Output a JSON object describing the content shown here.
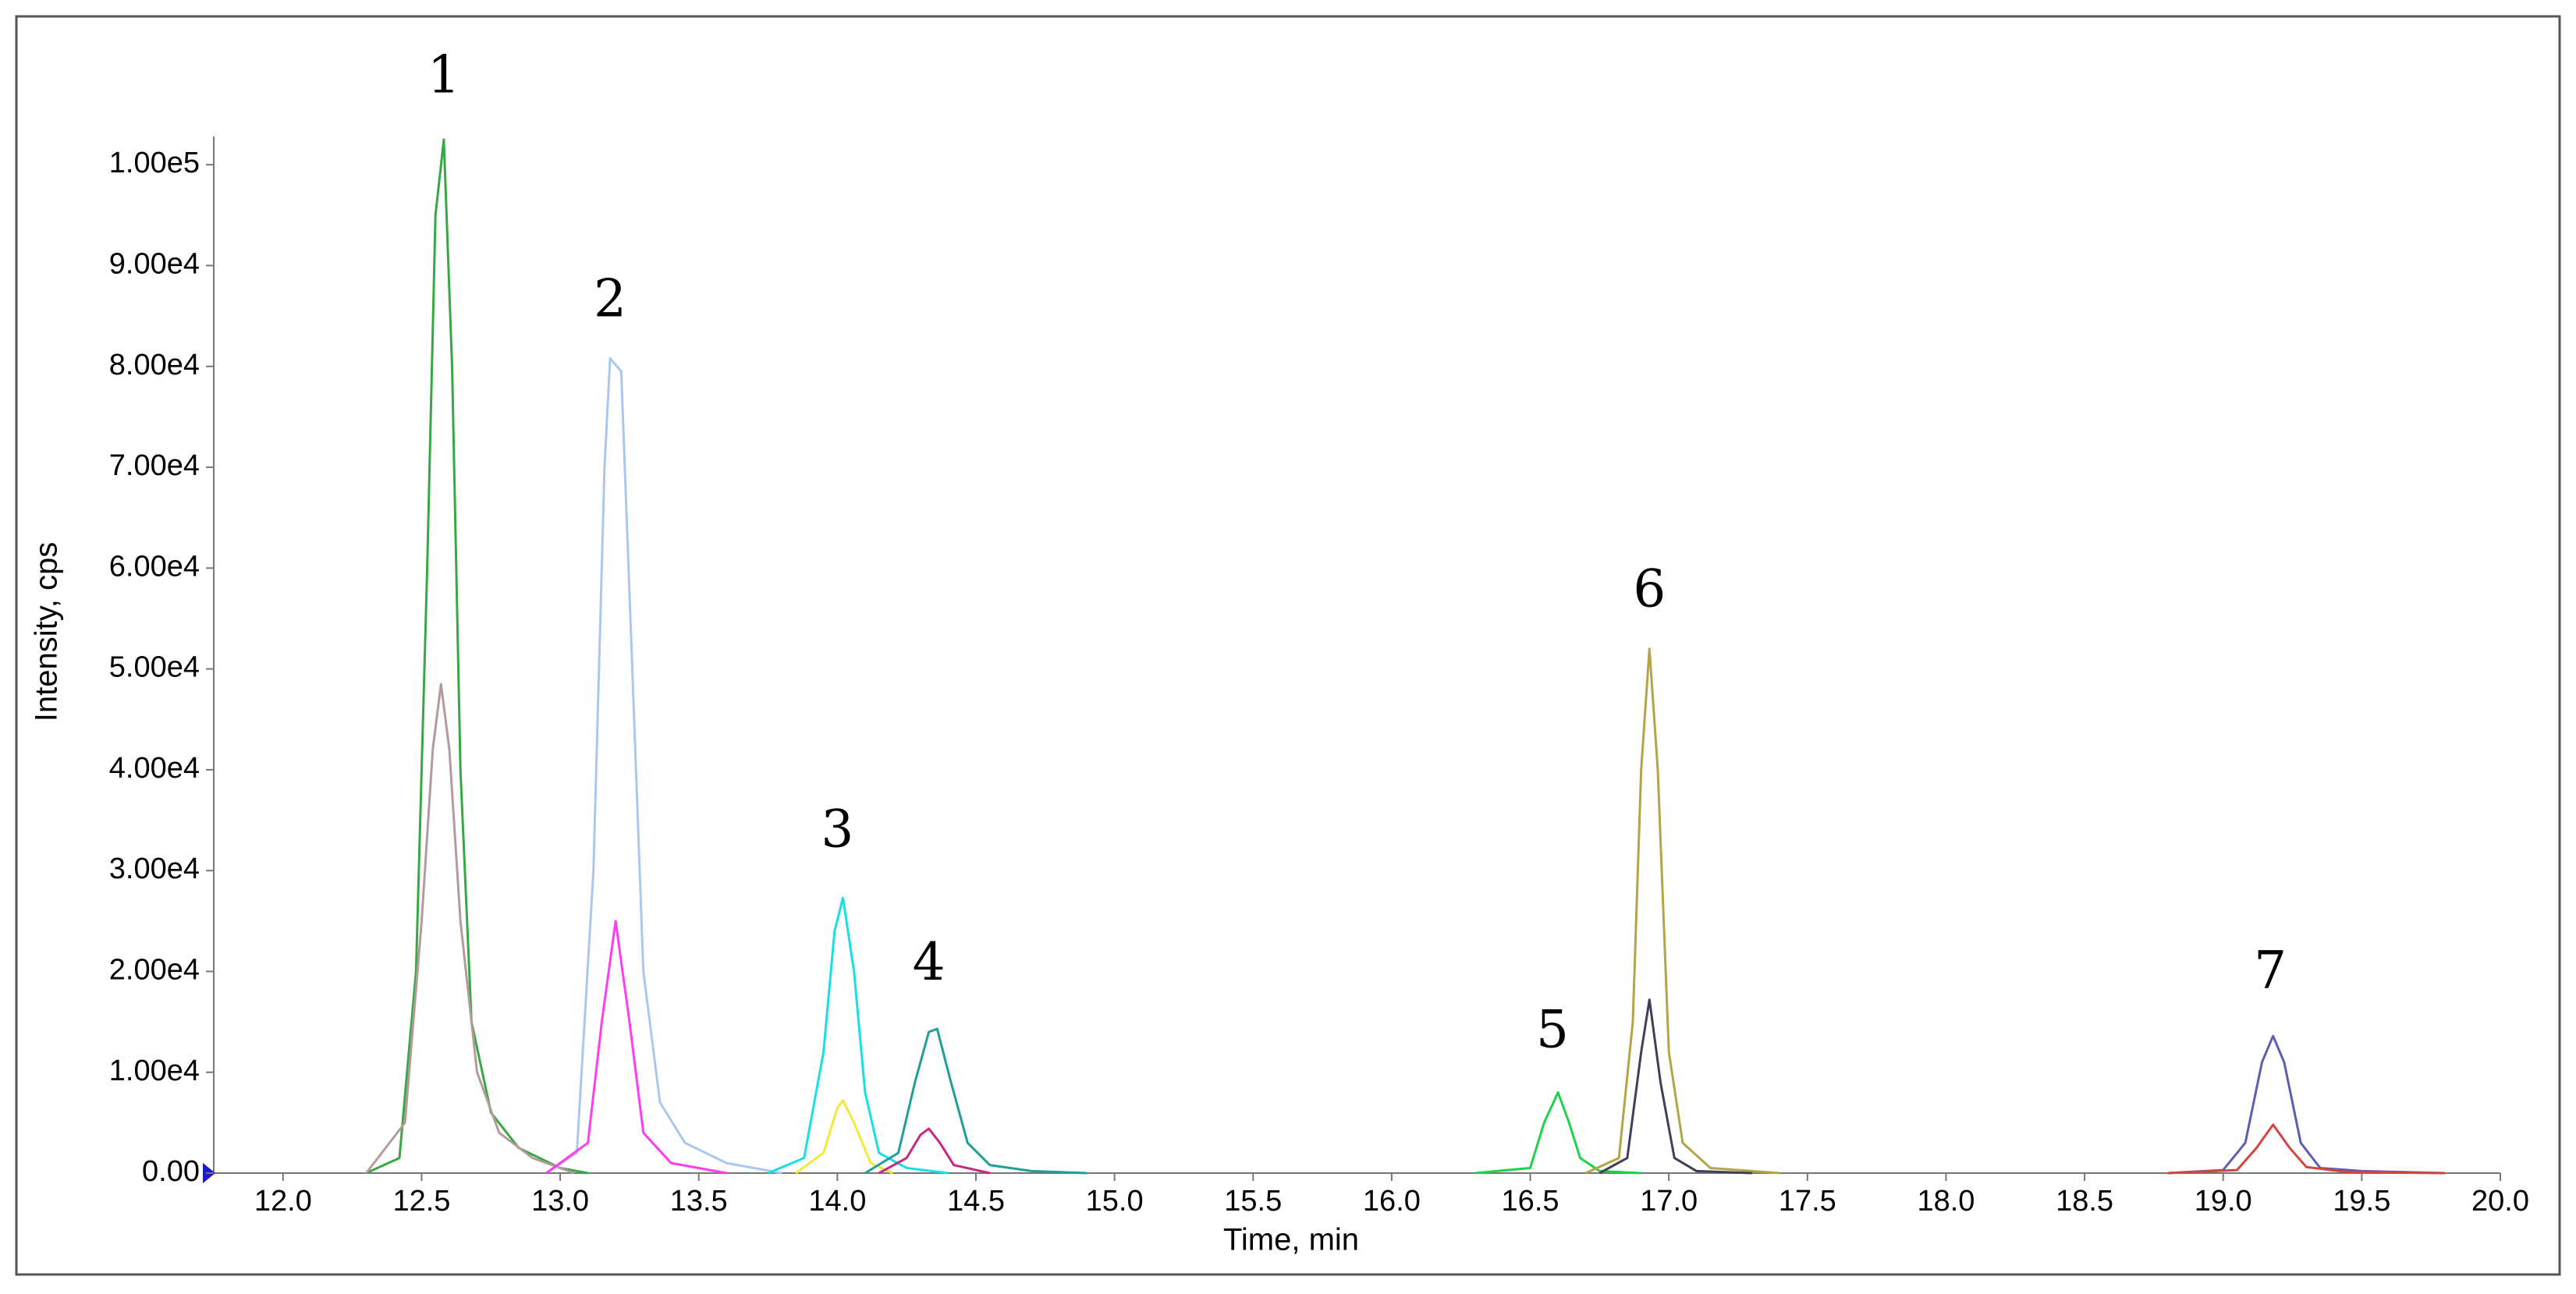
{
  "chart_data": {
    "type": "line",
    "x_label": "Time, min",
    "y_label": "Intensity, cps",
    "xlim": [
      11.75,
      20.0
    ],
    "ylim": [
      0,
      102800
    ],
    "xticks": [
      {
        "value": 12,
        "label": "12.0"
      },
      {
        "value": 12.5,
        "label": "12.5"
      },
      {
        "value": 13,
        "label": "13.0"
      },
      {
        "value": 13.5,
        "label": "13.5"
      },
      {
        "value": 14,
        "label": "14.0"
      },
      {
        "value": 14.5,
        "label": "14.5"
      },
      {
        "value": 15,
        "label": "15.0"
      },
      {
        "value": 15.5,
        "label": "15.5"
      },
      {
        "value": 16,
        "label": "16.0"
      },
      {
        "value": 16.5,
        "label": "16.5"
      },
      {
        "value": 17,
        "label": "17.0"
      },
      {
        "value": 17.5,
        "label": "17.5"
      },
      {
        "value": 18,
        "label": "18.0"
      },
      {
        "value": 18.5,
        "label": "18.5"
      },
      {
        "value": 19,
        "label": "19.0"
      },
      {
        "value": 19.5,
        "label": "19.5"
      },
      {
        "value": 20,
        "label": "20.0"
      }
    ],
    "yticks": [
      {
        "value": 0,
        "label": "0.00"
      },
      {
        "value": 10000,
        "label": "1.00e4"
      },
      {
        "value": 20000,
        "label": "2.00e4"
      },
      {
        "value": 30000,
        "label": "3.00e4"
      },
      {
        "value": 40000,
        "label": "4.00e4"
      },
      {
        "value": 50000,
        "label": "5.00e4"
      },
      {
        "value": 60000,
        "label": "6.00e4"
      },
      {
        "value": 70000,
        "label": "7.00e4"
      },
      {
        "value": 80000,
        "label": "8.00e4"
      },
      {
        "value": 90000,
        "label": "9.00e4"
      },
      {
        "value": 100000,
        "label": "1.00e5"
      }
    ],
    "series": [
      {
        "color": "#36a844",
        "x": [
          12.3,
          12.42,
          12.48,
          12.52,
          12.55,
          12.58,
          12.61,
          12.64,
          12.68,
          12.75,
          12.85,
          13.0,
          13.1
        ],
        "values": [
          0,
          1500,
          20000,
          60000,
          95000,
          102500,
          80000,
          40000,
          15000,
          6000,
          2500,
          500,
          0
        ]
      },
      {
        "color": "#b49a9a",
        "x": [
          12.3,
          12.44,
          12.5,
          12.54,
          12.57,
          12.6,
          12.64,
          12.7,
          12.78,
          12.9,
          13.05
        ],
        "values": [
          0,
          5000,
          25000,
          42000,
          48500,
          42000,
          25000,
          10000,
          4000,
          1500,
          0
        ]
      },
      {
        "color": "#a9c8ef",
        "x": [
          12.95,
          13.06,
          13.12,
          13.16,
          13.18,
          13.22,
          13.26,
          13.3,
          13.36,
          13.45,
          13.6,
          13.8
        ],
        "values": [
          0,
          2000,
          30000,
          70000,
          80800,
          79500,
          50000,
          20000,
          7000,
          3000,
          1000,
          0
        ]
      },
      {
        "color": "#ff3cf0",
        "x": [
          12.95,
          13.1,
          13.15,
          13.2,
          13.25,
          13.3,
          13.4,
          13.6
        ],
        "values": [
          0,
          3000,
          15000,
          25000,
          15000,
          4000,
          1000,
          0
        ]
      },
      {
        "color": "#14e0e6",
        "x": [
          13.75,
          13.88,
          13.95,
          13.99,
          14.02,
          14.06,
          14.1,
          14.15,
          14.25,
          14.4
        ],
        "values": [
          0,
          1500,
          12000,
          24000,
          27300,
          20000,
          8000,
          2000,
          500,
          0
        ]
      },
      {
        "color": "#f2ea3c",
        "x": [
          13.85,
          13.95,
          14.0,
          14.02,
          14.06,
          14.12,
          14.2
        ],
        "values": [
          0,
          2000,
          6500,
          7200,
          5000,
          1000,
          0
        ]
      },
      {
        "color": "#1f9e9a",
        "x": [
          14.1,
          14.22,
          14.28,
          14.33,
          14.36,
          14.41,
          14.47,
          14.55,
          14.7,
          14.9
        ],
        "values": [
          0,
          2000,
          9000,
          14000,
          14300,
          9000,
          3000,
          800,
          200,
          0
        ]
      },
      {
        "color": "#c8287e",
        "x": [
          14.15,
          14.25,
          14.3,
          14.33,
          14.37,
          14.42,
          14.55
        ],
        "values": [
          0,
          1500,
          3800,
          4400,
          3000,
          800,
          0
        ]
      },
      {
        "color": "#1ed34a",
        "x": [
          16.3,
          16.5,
          16.55,
          16.6,
          16.64,
          16.68,
          16.75,
          16.9
        ],
        "values": [
          0,
          500,
          5000,
          8000,
          5000,
          1500,
          200,
          0
        ]
      },
      {
        "color": "#b3a448",
        "x": [
          16.7,
          16.82,
          16.87,
          16.9,
          16.93,
          16.96,
          17.0,
          17.05,
          17.15,
          17.4
        ],
        "values": [
          0,
          1500,
          15000,
          40000,
          52000,
          40000,
          12000,
          3000,
          500,
          0
        ]
      },
      {
        "color": "#3e4058",
        "x": [
          16.75,
          16.85,
          16.9,
          16.93,
          16.97,
          17.02,
          17.1,
          17.3
        ],
        "values": [
          0,
          1500,
          12000,
          17200,
          9000,
          1500,
          200,
          0
        ]
      },
      {
        "color": "#5e5eb0",
        "x": [
          18.8,
          19.0,
          19.08,
          19.14,
          19.18,
          19.22,
          19.28,
          19.35,
          19.5,
          19.8
        ],
        "values": [
          0,
          300,
          3000,
          11000,
          13600,
          11000,
          3000,
          500,
          200,
          0
        ]
      },
      {
        "color": "#d4453f",
        "x": [
          18.8,
          19.05,
          19.12,
          19.18,
          19.24,
          19.3,
          19.45,
          19.8
        ],
        "values": [
          0,
          300,
          2500,
          4800,
          2500,
          600,
          100,
          0
        ]
      }
    ],
    "annotations": [
      {
        "text": "1",
        "x": 12.58,
        "y": 108500
      },
      {
        "text": "2",
        "x": 13.18,
        "y": 86300
      },
      {
        "text": "3",
        "x": 14.0,
        "y": 33700
      },
      {
        "text": "4",
        "x": 14.33,
        "y": 20500
      },
      {
        "text": "5",
        "x": 16.58,
        "y": 13800
      },
      {
        "text": "6",
        "x": 16.93,
        "y": 57500
      },
      {
        "text": "7",
        "x": 19.17,
        "y": 19700
      }
    ]
  }
}
